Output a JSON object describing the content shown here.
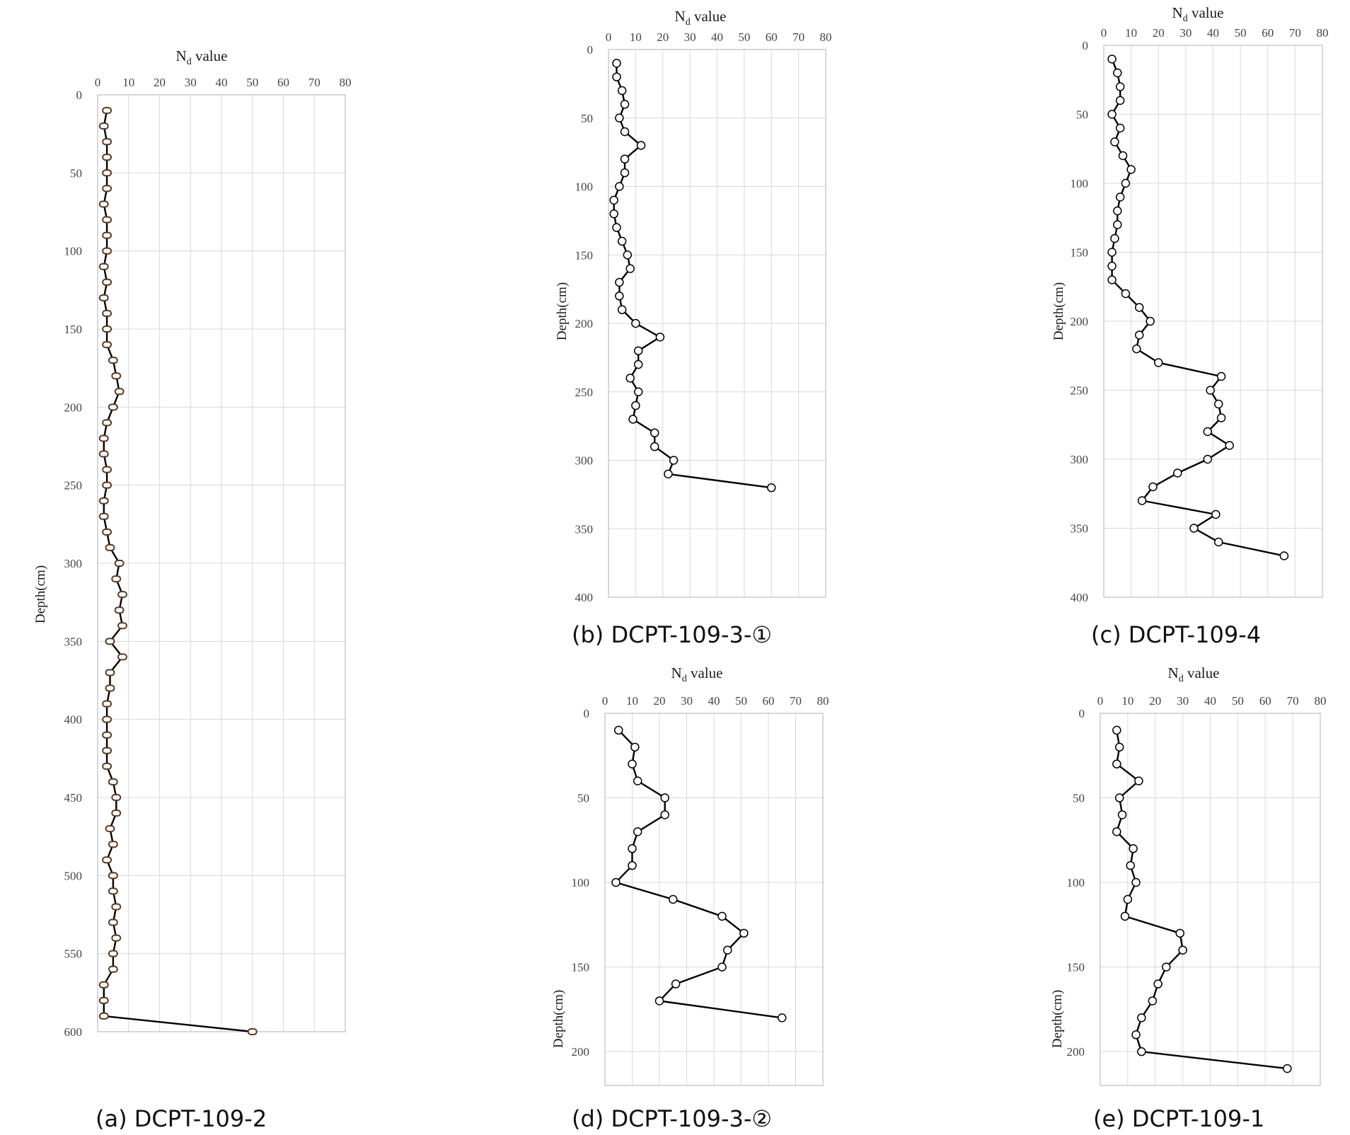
{
  "chart_data": [
    {
      "type": "line",
      "caption": "(a) DCPT-109-2",
      "xlabel_main": "N",
      "xlabel_sub": "d",
      "xlabel_rest": " value",
      "ylabel": "Depth(cm)",
      "xlim": [
        0,
        80
      ],
      "ylim": [
        0,
        600
      ],
      "x_ticks": [
        0,
        10,
        20,
        30,
        40,
        50,
        60,
        70,
        80
      ],
      "y_ticks": [
        0,
        50,
        100,
        150,
        200,
        250,
        300,
        350,
        400,
        450,
        500,
        550,
        600
      ],
      "marker_style": "brown",
      "series": [
        {
          "depth": [
            10,
            20,
            30,
            40,
            50,
            60,
            70,
            80,
            90,
            100,
            110,
            120,
            130,
            140,
            150,
            160,
            170,
            180,
            190,
            200,
            210,
            220,
            230,
            240,
            250,
            260,
            270,
            280,
            290,
            300,
            310,
            320,
            330,
            340,
            350,
            360,
            370,
            380,
            390,
            400,
            410,
            420,
            430,
            440,
            450,
            460,
            470,
            480,
            490,
            500,
            510,
            520,
            530,
            540,
            550,
            560,
            570,
            580,
            590,
            600
          ],
          "nd": [
            3,
            2,
            3,
            3,
            3,
            3,
            2,
            3,
            3,
            3,
            2,
            3,
            2,
            3,
            3,
            3,
            5,
            6,
            7,
            5,
            3,
            2,
            2,
            3,
            3,
            2,
            2,
            3,
            4,
            7,
            6,
            8,
            7,
            8,
            4,
            8,
            4,
            4,
            3,
            3,
            3,
            3,
            3,
            5,
            6,
            6,
            4,
            5,
            3,
            5,
            5,
            6,
            5,
            6,
            5,
            5,
            2,
            2,
            2,
            50
          ]
        }
      ]
    },
    {
      "type": "line",
      "caption": "(b) DCPT-109-3-①",
      "xlabel_main": "N",
      "xlabel_sub": "d",
      "xlabel_rest": " value",
      "ylabel": "Depth(cm)",
      "xlim": [
        0,
        80
      ],
      "ylim": [
        0,
        400
      ],
      "x_ticks": [
        0,
        10,
        20,
        30,
        40,
        50,
        60,
        70,
        80
      ],
      "y_ticks": [
        0,
        50,
        100,
        150,
        200,
        250,
        300,
        350,
        400
      ],
      "marker_style": "plain",
      "series": [
        {
          "depth": [
            10,
            20,
            30,
            40,
            50,
            60,
            70,
            80,
            90,
            100,
            110,
            120,
            130,
            140,
            150,
            160,
            170,
            180,
            190,
            200,
            210,
            220,
            230,
            240,
            250,
            260,
            270,
            280,
            290,
            300,
            310,
            320
          ],
          "nd": [
            3,
            3,
            5,
            6,
            4,
            6,
            12,
            6,
            6,
            4,
            2,
            2,
            3,
            5,
            7,
            8,
            4,
            4,
            5,
            10,
            19,
            11,
            11,
            8,
            11,
            10,
            9,
            17,
            17,
            24,
            22,
            60
          ]
        }
      ]
    },
    {
      "type": "line",
      "caption": "(c) DCPT-109-4",
      "xlabel_main": "N",
      "xlabel_sub": "d",
      "xlabel_rest": " value",
      "ylabel": "Depth(cm)",
      "xlim": [
        0,
        80
      ],
      "ylim": [
        0,
        400
      ],
      "x_ticks": [
        0,
        10,
        20,
        30,
        40,
        50,
        60,
        70,
        80
      ],
      "y_ticks": [
        0,
        50,
        100,
        150,
        200,
        250,
        300,
        350,
        400
      ],
      "marker_style": "plain",
      "series": [
        {
          "depth": [
            10,
            20,
            30,
            40,
            50,
            60,
            70,
            80,
            90,
            100,
            110,
            120,
            130,
            140,
            150,
            160,
            170,
            180,
            190,
            200,
            210,
            220,
            230,
            240,
            250,
            260,
            270,
            280,
            290,
            300,
            310,
            320,
            330,
            340,
            350,
            360,
            370
          ],
          "nd": [
            3,
            5,
            6,
            6,
            3,
            6,
            4,
            7,
            10,
            8,
            6,
            5,
            5,
            4,
            3,
            3,
            3,
            8,
            13,
            17,
            13,
            12,
            20,
            43,
            39,
            42,
            43,
            38,
            46,
            38,
            27,
            18,
            14,
            41,
            33,
            42,
            66
          ]
        }
      ]
    },
    {
      "type": "line",
      "caption": "(d) DCPT-109-3-②",
      "xlabel_main": "N",
      "xlabel_sub": "d",
      "xlabel_rest": " value",
      "ylabel": "Depth(cm)",
      "xlim": [
        0,
        80
      ],
      "ylim": [
        0,
        220
      ],
      "x_ticks": [
        0,
        10,
        20,
        30,
        40,
        50,
        60,
        70,
        80
      ],
      "y_ticks": [
        0,
        50,
        100,
        150,
        200
      ],
      "marker_style": "plain",
      "series": [
        {
          "depth": [
            10,
            20,
            30,
            40,
            50,
            60,
            70,
            80,
            90,
            100,
            110,
            120,
            130,
            140,
            150,
            160,
            170,
            180
          ],
          "nd": [
            5,
            11,
            10,
            12,
            22,
            22,
            12,
            10,
            10,
            4,
            25,
            43,
            51,
            45,
            43,
            26,
            20,
            65
          ]
        }
      ]
    },
    {
      "type": "line",
      "caption": "(e) DCPT-109-1",
      "xlabel_main": "N",
      "xlabel_sub": "d",
      "xlabel_rest": " value",
      "ylabel": "Depth(cm)",
      "xlim": [
        0,
        80
      ],
      "ylim": [
        0,
        220
      ],
      "x_ticks": [
        0,
        10,
        20,
        30,
        40,
        50,
        60,
        70,
        80
      ],
      "y_ticks": [
        0,
        50,
        100,
        150,
        200
      ],
      "marker_style": "plain",
      "series": [
        {
          "depth": [
            10,
            20,
            30,
            40,
            50,
            60,
            70,
            80,
            90,
            100,
            110,
            120,
            130,
            140,
            150,
            160,
            170,
            180,
            190,
            200,
            210
          ],
          "nd": [
            6,
            7,
            6,
            14,
            7,
            8,
            6,
            12,
            11,
            13,
            10,
            9,
            29,
            30,
            24,
            21,
            19,
            15,
            13,
            15,
            68
          ]
        }
      ]
    }
  ]
}
